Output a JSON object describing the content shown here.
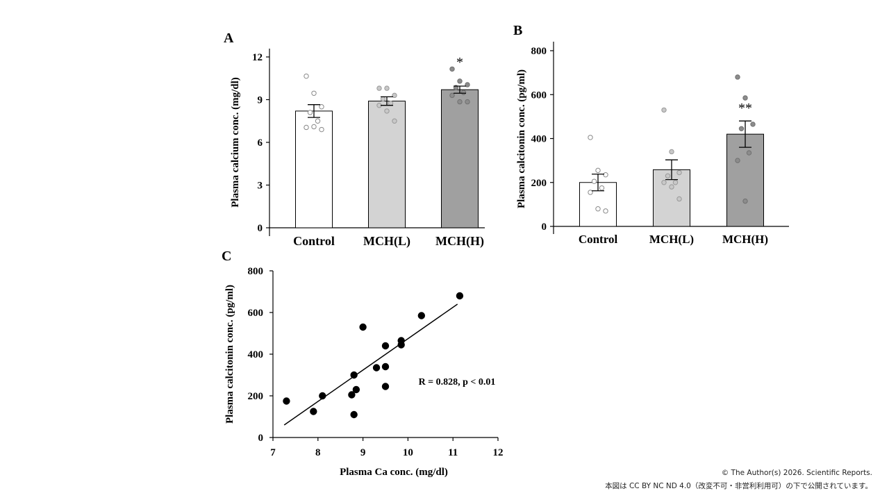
{
  "panels": {
    "a": {
      "letter": "A",
      "ylabel": "Plasma calcium conc. (mg/dl)"
    },
    "b": {
      "letter": "B",
      "ylabel": "Plasma calcitonin conc. (pg/ml)"
    },
    "c": {
      "letter": "C",
      "ylabel": "Plasma calcitonin conc. (pg/ml)",
      "xlabel": "Plasma Ca conc. (mg/dl)",
      "annotation": "R = 0.828, p < 0.01"
    }
  },
  "credit": {
    "line1": "© The Author(s) 2026. Scientific Reports.",
    "line2": "本図は CC BY NC ND 4.0（改変不可・非営利利用可）の下で公開されています。"
  },
  "chart_data": [
    {
      "id": "A",
      "type": "bar",
      "title": "",
      "ylabel": "Plasma calcium conc. (mg/dl)",
      "xlabel": "",
      "categories": [
        "Control",
        "MCH(L)",
        "MCH(H)"
      ],
      "values": [
        8.2,
        8.9,
        9.7
      ],
      "errors": [
        0.45,
        0.3,
        0.25
      ],
      "significance": [
        "",
        "",
        "*"
      ],
      "bar_colors": [
        "#ffffff",
        "#d3d3d3",
        "#a0a0a0"
      ],
      "ylim": [
        0,
        12
      ],
      "yticks": [
        "0",
        "3",
        "6",
        "9",
        "12"
      ],
      "grid": false,
      "points": [
        [
          10.65,
          9.45,
          8.5,
          8.1,
          7.5,
          7.05,
          7.1,
          6.9
        ],
        [
          9.8,
          9.8,
          9.3,
          9.05,
          8.75,
          8.6,
          8.2,
          7.5
        ],
        [
          11.15,
          10.3,
          10.05,
          9.85,
          9.5,
          9.3,
          8.85,
          8.85
        ]
      ]
    },
    {
      "id": "B",
      "type": "bar",
      "title": "",
      "ylabel": "Plasma calcitonin conc. (pg/ml)",
      "xlabel": "",
      "categories": [
        "Control",
        "MCH(L)",
        "MCH(H)"
      ],
      "values": [
        200,
        258,
        420
      ],
      "errors": [
        38,
        45,
        60
      ],
      "significance": [
        "",
        "",
        "**"
      ],
      "bar_colors": [
        "#ffffff",
        "#d3d3d3",
        "#a0a0a0"
      ],
      "ylim": [
        0,
        800
      ],
      "yticks": [
        "0",
        "200",
        "400",
        "600",
        "800"
      ],
      "grid": false,
      "points": [
        [
          405,
          255,
          235,
          205,
          175,
          155,
          80,
          70
        ],
        [
          530,
          340,
          245,
          230,
          200,
          200,
          180,
          125
        ],
        [
          680,
          585,
          465,
          445,
          335,
          300,
          115
        ]
      ]
    },
    {
      "id": "C",
      "type": "scatter",
      "title": "",
      "xlabel": "Plasma Ca conc. (mg/dl)",
      "ylabel": "Plasma calcitonin conc. (pg/ml)",
      "xlim": [
        7,
        12
      ],
      "ylim": [
        0,
        800
      ],
      "xticks": [
        "7",
        "8",
        "9",
        "10",
        "11",
        "12"
      ],
      "yticks": [
        "0",
        "200",
        "400",
        "600",
        "800"
      ],
      "grid": false,
      "x": [
        7.3,
        7.9,
        8.1,
        8.75,
        8.8,
        8.8,
        8.85,
        9.0,
        9.3,
        9.5,
        9.5,
        9.5,
        9.85,
        9.85,
        10.3,
        11.15
      ],
      "y": [
        175,
        125,
        200,
        205,
        300,
        110,
        230,
        530,
        335,
        245,
        340,
        440,
        465,
        445,
        585,
        680
      ],
      "trendline": {
        "x": [
          7.25,
          11.1
        ],
        "y": [
          60,
          640
        ]
      },
      "annotation": "R = 0.828, p < 0.01"
    }
  ]
}
